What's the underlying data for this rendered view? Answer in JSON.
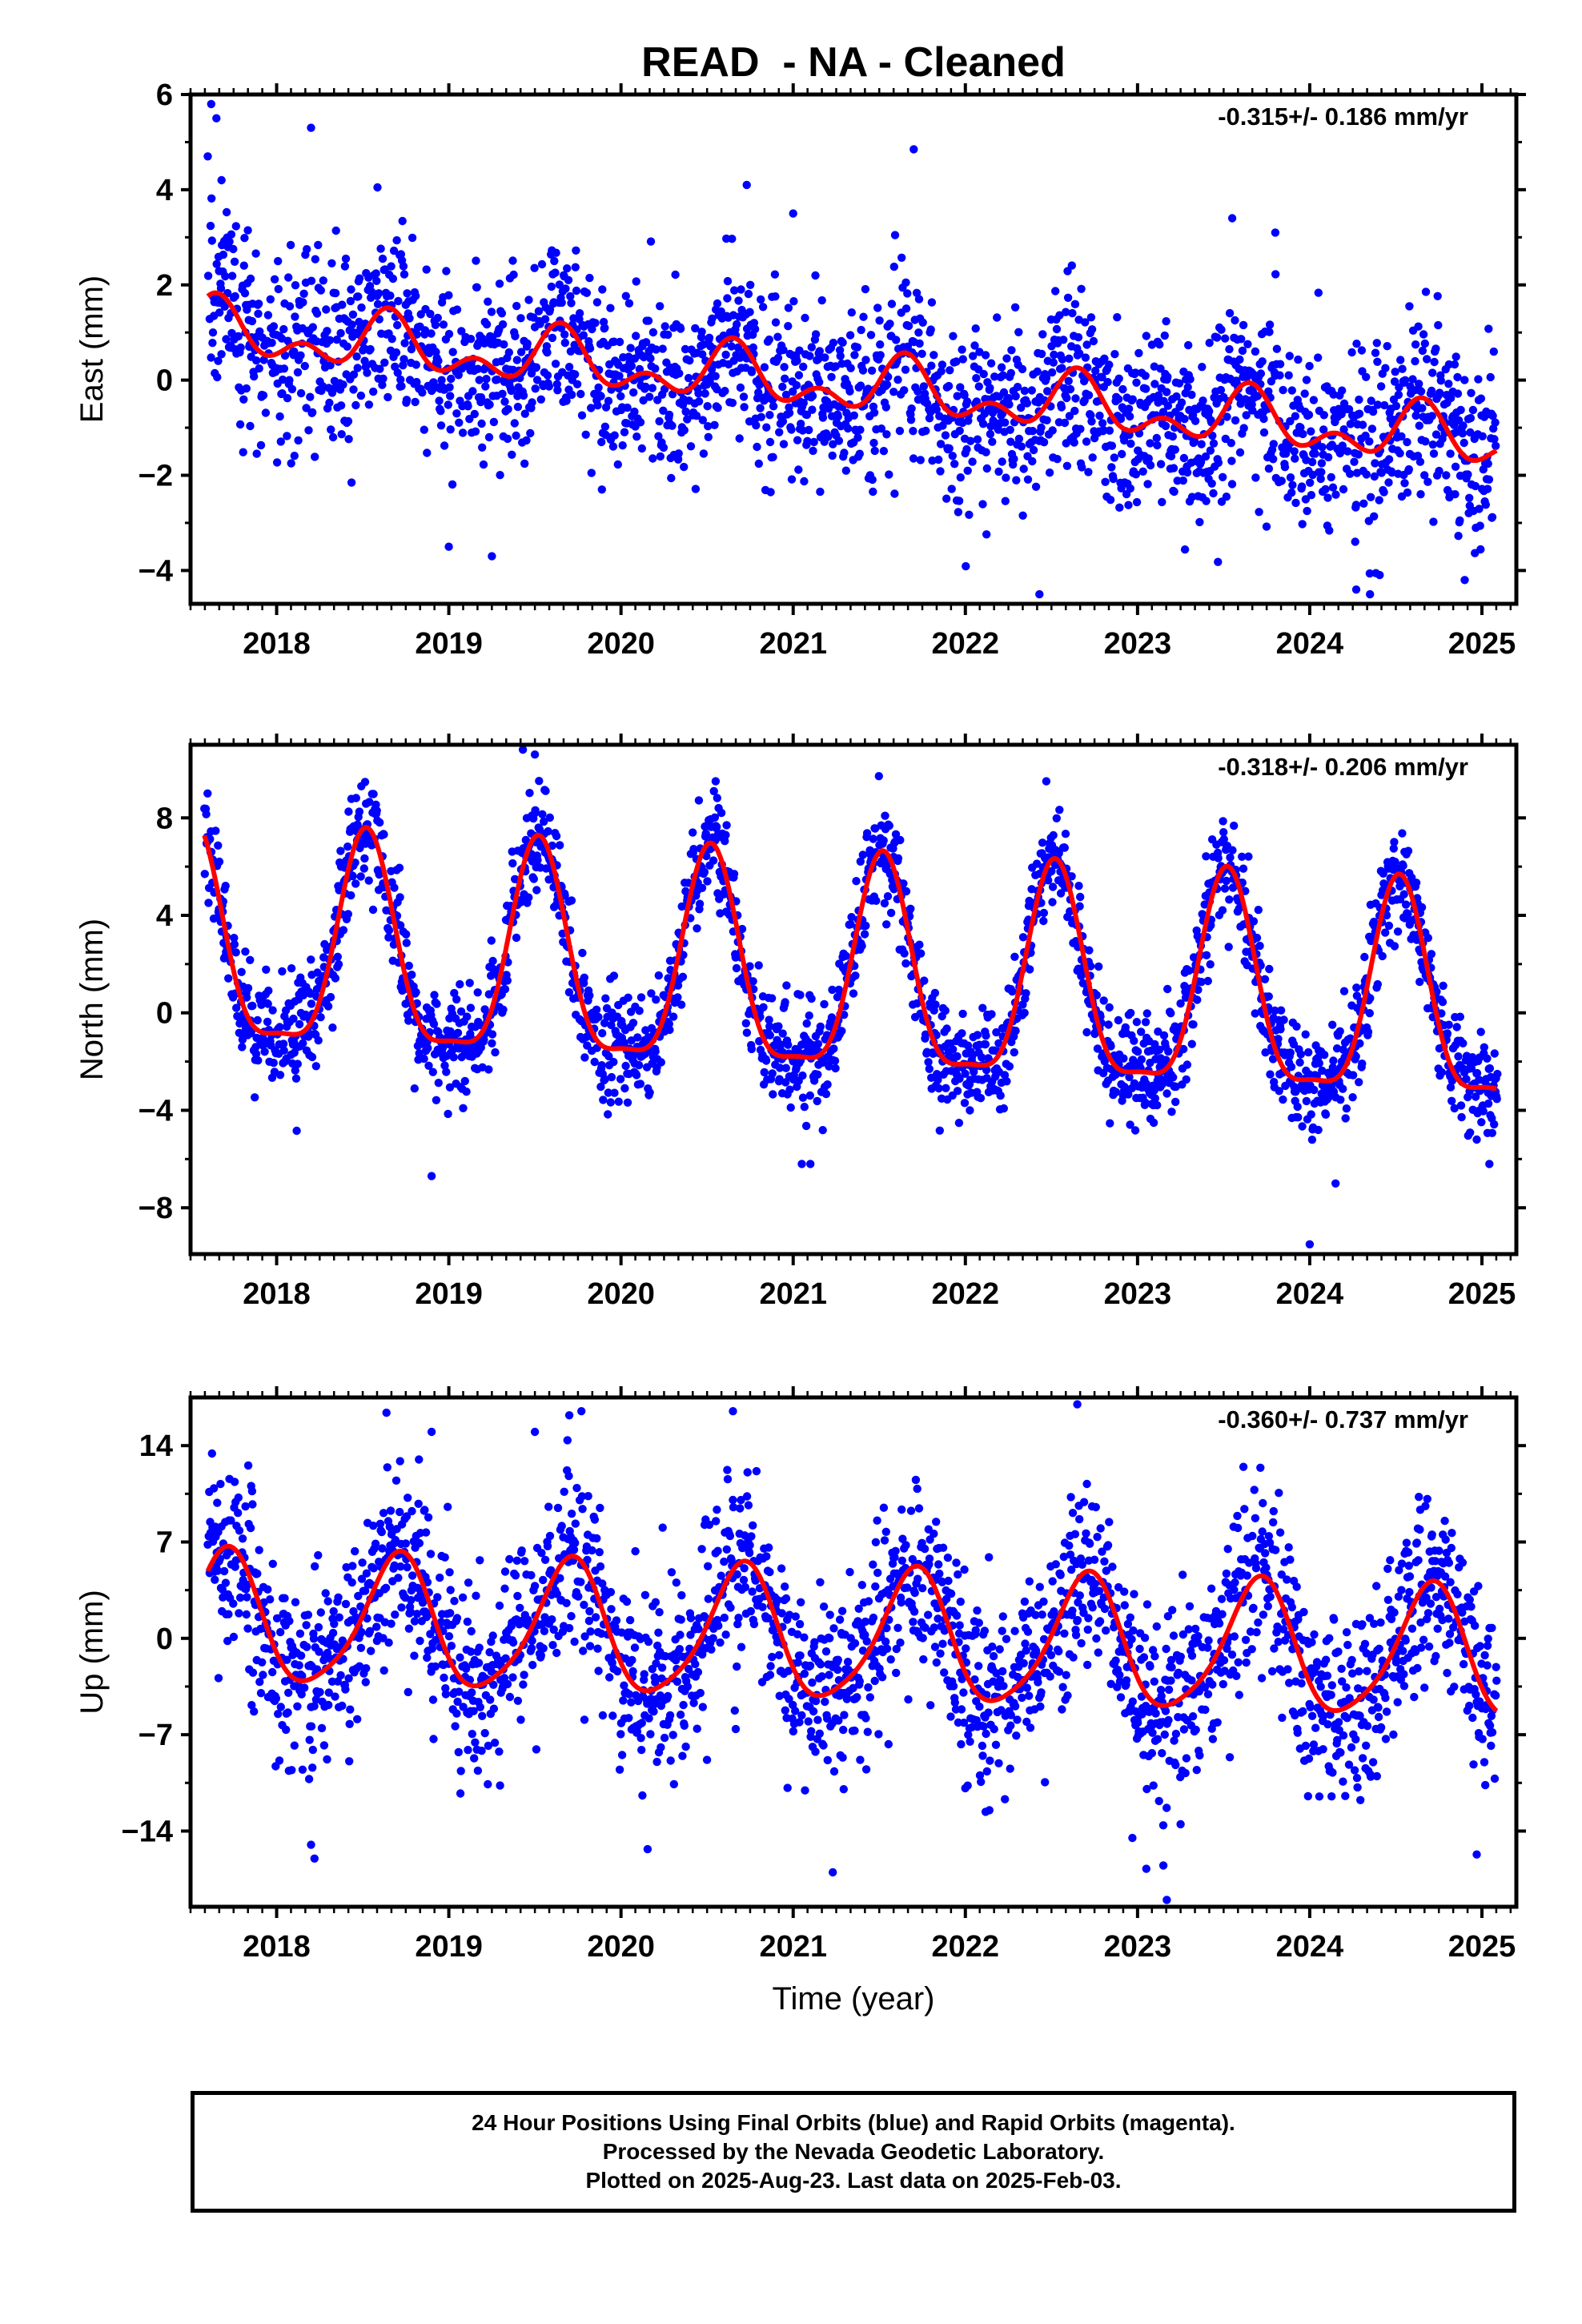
{
  "title": "READ  - NA - Cleaned",
  "colors": {
    "points": "#0000ff",
    "fit": "#ff0000",
    "axis": "#000000"
  },
  "chart_data": [
    {
      "type": "scatter",
      "id": "east",
      "ylabel": "East (mm)",
      "xlabel": "",
      "rate_label": "-0.315+/- 0.186 mm/yr",
      "xlim": [
        2017.5,
        2025.2
      ],
      "ylim": [
        -4.7,
        6.0
      ],
      "yticks": [
        -4,
        -2,
        0,
        2,
        4,
        6
      ],
      "xticks": [
        2018,
        2019,
        2020,
        2021,
        2022,
        2023,
        2024,
        2025
      ],
      "fit": {
        "offset": 1.05,
        "trend": -0.315,
        "t0": 2017.6,
        "annual_amp": 0.45,
        "annual_peak": 2017.65,
        "semi_amp": 0.35,
        "semi_peak": 2017.65,
        "t_start": 2017.6,
        "t_end": 2025.09
      },
      "scatter_sd": 0.95,
      "outliers": [
        [
          2017.62,
          5.8
        ],
        [
          2017.65,
          5.5
        ],
        [
          2017.6,
          4.7
        ],
        [
          2017.68,
          4.2
        ],
        [
          2018.2,
          5.3
        ],
        [
          2021.0,
          3.5
        ],
        [
          2021.7,
          4.85
        ],
        [
          2020.73,
          4.1
        ],
        [
          2019.25,
          -3.7
        ],
        [
          2022.43,
          -4.5
        ],
        [
          2024.35,
          -4.5
        ],
        [
          2024.27,
          -4.4
        ],
        [
          2024.9,
          -4.2
        ],
        [
          2019.0,
          -3.5
        ],
        [
          2023.55,
          3.4
        ],
        [
          2023.8,
          3.1
        ]
      ]
    },
    {
      "type": "scatter",
      "id": "north",
      "ylabel": "North (mm)",
      "xlabel": "",
      "rate_label": "-0.318+/- 0.206 mm/yr",
      "xlim": [
        2017.5,
        2025.2
      ],
      "ylim": [
        -9.9,
        11.0
      ],
      "yticks": [
        -8,
        -4,
        0,
        4,
        8
      ],
      "xticks": [
        2018,
        2019,
        2020,
        2021,
        2022,
        2023,
        2024,
        2025
      ],
      "fit": {
        "offset": 2.4,
        "trend": -0.318,
        "t0": 2017.6,
        "annual_amp": 4.3,
        "annual_peak": 2017.52,
        "semi_amp": 1.2,
        "semi_peak": 2017.52,
        "t_start": 2017.58,
        "t_end": 2025.09
      },
      "scatter_sd": 1.1,
      "outliers": [
        [
          2019.43,
          10.8
        ],
        [
          2019.5,
          10.6
        ],
        [
          2018.9,
          -6.7
        ],
        [
          2021.1,
          -6.2
        ],
        [
          2021.05,
          -6.2
        ],
        [
          2024.0,
          -9.5
        ],
        [
          2024.15,
          -7.0
        ],
        [
          2024.97,
          -5.2
        ],
        [
          2022.47,
          9.5
        ],
        [
          2020.55,
          9.5
        ]
      ]
    },
    {
      "type": "scatter",
      "id": "up",
      "ylabel": "Up (mm)",
      "xlabel": "Time (year)",
      "rate_label": "-0.360+/- 0.737 mm/yr",
      "xlim": [
        2017.5,
        2025.2
      ],
      "ylim": [
        -19.5,
        17.5
      ],
      "yticks": [
        -14,
        -7,
        0,
        7,
        14
      ],
      "xticks": [
        2018,
        2019,
        2020,
        2021,
        2022,
        2023,
        2024,
        2025
      ],
      "fit": {
        "offset": 0.0,
        "trend": -0.36,
        "t0": 2021.3,
        "annual_amp": 4.7,
        "annual_peak": 2017.7,
        "semi_amp": 0.8,
        "semi_peak": 2017.75,
        "t_start": 2017.6,
        "t_end": 2025.09
      },
      "scatter_sd": 3.4,
      "outliers": [
        [
          2022.65,
          17.0
        ],
        [
          2020.65,
          16.5
        ],
        [
          2019.77,
          16.5
        ],
        [
          2019.7,
          16.2
        ],
        [
          2021.23,
          -17.0
        ],
        [
          2023.17,
          -19.0
        ],
        [
          2023.15,
          -16.5
        ],
        [
          2018.22,
          -16.0
        ],
        [
          2018.2,
          -15.0
        ],
        [
          2024.97,
          -15.7
        ],
        [
          2023.25,
          -13.5
        ],
        [
          2022.97,
          -14.5
        ],
        [
          2019.5,
          15.0
        ],
        [
          2018.9,
          15.0
        ]
      ]
    }
  ],
  "footer": {
    "line1": "24 Hour Positions Using Final Orbits (blue) and Rapid Orbits (magenta).",
    "line2": "Processed by the Nevada Geodetic Laboratory.",
    "line3": "Plotted on 2025-Aug-23. Last data on 2025-Feb-03."
  }
}
